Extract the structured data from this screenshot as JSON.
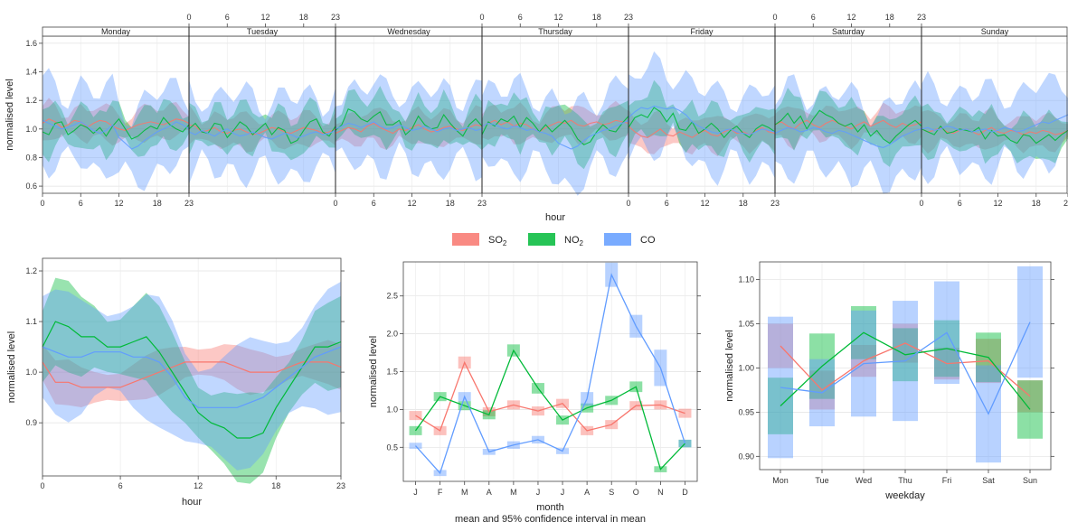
{
  "colors": {
    "so2": "#F8766D",
    "no2": "#00BA38",
    "co": "#619CFF"
  },
  "legend": {
    "items": [
      {
        "key": "so2",
        "base": "SO",
        "sub": "2"
      },
      {
        "key": "no2",
        "base": "NO",
        "sub": "2"
      },
      {
        "key": "co",
        "base": "CO",
        "sub": ""
      }
    ]
  },
  "chart_data": [
    {
      "id": "weekly",
      "type": "line",
      "xlabel": "hour",
      "ylabel": "normalised level",
      "ylim": [
        0.55,
        1.65
      ],
      "yticks": [
        0.6,
        0.8,
        1.0,
        1.2,
        1.4,
        1.6
      ],
      "panels": [
        "Monday",
        "Tuesday",
        "Wednesday",
        "Thursday",
        "Friday",
        "Saturday",
        "Sunday"
      ],
      "hour_ticks": [
        0,
        6,
        12,
        18,
        23
      ],
      "interval": "95% confidence interval (shaded band)",
      "series": [
        {
          "key": "so2",
          "values": [
            [
              1.04,
              1.07,
              1.05,
              1.01,
              1.03,
              1.06,
              1.05,
              1.01,
              1.04,
              1.06,
              1.05,
              1.02,
              1.0,
              0.99,
              1.01,
              1.03,
              1.04,
              1.05,
              1.04,
              1.03,
              1.05,
              1.07,
              1.06,
              1.04
            ],
            [
              1.03,
              1.02,
              0.98,
              0.99,
              1.01,
              0.98,
              0.97,
              0.99,
              1.0,
              0.98,
              0.96,
              0.97,
              0.99,
              1.01,
              1.0,
              0.98,
              0.97,
              0.99,
              1.01,
              1.0,
              0.99,
              0.97,
              0.98,
              1.0
            ],
            [
              0.97,
              0.99,
              1.01,
              1.0,
              0.98,
              1.02,
              1.04,
              1.01,
              0.99,
              0.97,
              1.0,
              0.99,
              1.01,
              1.03,
              1.0,
              0.98,
              0.99,
              1.01,
              1.02,
              1.0,
              0.99,
              1.01,
              1.03,
              1.02
            ],
            [
              1.02,
              1.04,
              1.06,
              1.03,
              1.05,
              1.02,
              1.04,
              1.03,
              1.0,
              0.98,
              1.01,
              1.03,
              1.05,
              1.04,
              1.06,
              1.03,
              1.02,
              1.04,
              1.05,
              1.03,
              1.04,
              1.06,
              1.05,
              1.04
            ],
            [
              1.02,
              0.98,
              0.95,
              0.94,
              0.97,
              1.0,
              0.96,
              0.95,
              0.98,
              0.96,
              0.94,
              0.97,
              0.99,
              0.96,
              0.95,
              0.98,
              1.0,
              0.97,
              0.98,
              0.96,
              0.99,
              1.01,
              0.98,
              0.97
            ],
            [
              1.03,
              1.05,
              1.02,
              1.0,
              1.04,
              1.06,
              1.03,
              1.01,
              1.04,
              1.06,
              1.04,
              1.02,
              1.0,
              1.03,
              1.05,
              1.02,
              1.04,
              1.06,
              1.03,
              1.01,
              1.04,
              1.02,
              1.03,
              1.05
            ],
            [
              1.0,
              0.98,
              0.99,
              1.01,
              0.98,
              0.97,
              0.99,
              1.0,
              0.98,
              0.96,
              0.99,
              1.01,
              0.98,
              0.97,
              0.99,
              0.98,
              0.96,
              0.98,
              0.97,
              0.99,
              0.98,
              0.96,
              0.97,
              0.99
            ]
          ],
          "halfwidth": 0.1
        },
        {
          "key": "no2",
          "values": [
            [
              0.98,
              0.96,
              1.04,
              1.05,
              0.96,
              0.99,
              1.03,
              1.01,
              0.97,
              1.01,
              0.95,
              1.02,
              1.07,
              1.0,
              0.93,
              0.95,
              0.99,
              1.02,
              1.0,
              1.08,
              1.03,
              1.0,
              0.98,
              1.03
            ],
            [
              1.0,
              1.04,
              0.98,
              0.97,
              1.04,
              1.03,
              0.94,
              0.99,
              1.05,
              1.02,
              0.96,
              1.0,
              1.04,
              0.96,
              1.01,
              0.99,
              0.9,
              0.92,
              0.99,
              1.05,
              1.07,
              0.98,
              0.95,
              1.02
            ],
            [
              0.99,
              1.03,
              1.14,
              1.12,
              1.07,
              1.05,
              1.09,
              1.12,
              1.03,
              1.03,
              1.06,
              0.96,
              1.0,
              1.09,
              1.03,
              1.0,
              1.01,
              1.1,
              1.04,
              0.99,
              0.95,
              1.03,
              1.07,
              1.02
            ],
            [
              0.96,
              1.05,
              1.02,
              1.07,
              1.05,
              1.09,
              1.01,
              1.08,
              1.04,
              0.98,
              1.03,
              0.98,
              1.02,
              1.06,
              1.01,
              0.93,
              0.89,
              0.91,
              0.98,
              1.03,
              0.99,
              0.98,
              1.04,
              1.09
            ],
            [
              1.01,
              1.08,
              1.1,
              1.08,
              1.15,
              1.12,
              1.05,
              1.11,
              1.0,
              0.99,
              1.05,
              0.97,
              1.0,
              1.04,
              1.0,
              0.94,
              0.99,
              1.02,
              0.97,
              0.94,
              1.0,
              1.03,
              1.01,
              0.98
            ],
            [
              1.03,
              1.06,
              1.11,
              1.04,
              1.09,
              1.0,
              1.07,
              1.13,
              1.1,
              1.08,
              1.04,
              1.02,
              1.04,
              0.98,
              1.03,
              0.95,
              0.99,
              0.93,
              0.9,
              0.95,
              0.99,
              1.03,
              1.06,
              1.02
            ],
            [
              1.0,
              0.98,
              0.96,
              1.02,
              0.97,
              0.98,
              1.0,
              0.99,
              0.98,
              1.01,
              0.93,
              0.99,
              0.95,
              0.96,
              0.92,
              0.9,
              0.96,
              0.95,
              0.9,
              0.93,
              0.96,
              0.92,
              0.96,
              0.99
            ]
          ],
          "halfwidth": 0.13
        },
        {
          "key": "co",
          "values": [
            [
              1.06,
              1.04,
              1.02,
              1.0,
              1.01,
              1.03,
              1.05,
              1.02,
              0.99,
              0.97,
              0.99,
              1.03,
              0.94,
              0.9,
              0.86,
              0.88,
              0.92,
              0.95,
              0.98,
              1.0,
              1.02,
              1.05,
              1.03,
              1.0
            ],
            [
              0.98,
              0.96,
              0.99,
              0.97,
              0.95,
              0.98,
              1.0,
              0.97,
              0.95,
              0.96,
              0.98,
              0.96,
              0.94,
              0.93,
              0.95,
              0.97,
              0.96,
              0.94,
              0.95,
              0.97,
              0.98,
              0.96,
              0.97,
              0.99
            ],
            [
              1.0,
              1.02,
              1.04,
              1.03,
              1.01,
              1.03,
              1.05,
              1.02,
              1.0,
              1.01,
              1.03,
              1.01,
              0.99,
              1.0,
              1.02,
              1.0,
              0.98,
              1.0,
              1.01,
              0.99,
              1.0,
              1.01,
              0.99,
              1.0
            ],
            [
              1.02,
              1.04,
              1.03,
              1.01,
              1.0,
              1.02,
              1.01,
              0.99,
              1.0,
              0.98,
              0.97,
              0.95,
              0.9,
              0.88,
              0.86,
              0.88,
              0.92,
              0.95,
              0.97,
              0.99,
              1.0,
              1.02,
              1.04,
              1.06
            ],
            [
              1.08,
              1.12,
              1.15,
              1.14,
              1.16,
              1.15,
              1.14,
              1.15,
              1.13,
              1.1,
              1.05,
              1.02,
              1.0,
              0.98,
              0.97,
              0.99,
              1.0,
              0.98,
              0.97,
              0.96,
              0.98,
              1.0,
              0.99,
              0.98
            ],
            [
              0.97,
              0.99,
              1.01,
              1.0,
              0.98,
              0.99,
              1.01,
              1.0,
              0.98,
              0.97,
              0.99,
              0.98,
              0.96,
              0.94,
              0.92,
              0.9,
              0.88,
              0.87,
              0.89,
              0.92,
              0.95,
              0.97,
              0.99,
              1.0
            ],
            [
              1.0,
              1.01,
              0.99,
              1.0,
              1.02,
              1.01,
              0.99,
              1.0,
              0.98,
              0.99,
              1.0,
              0.98,
              0.99,
              1.01,
              1.0,
              0.98,
              0.99,
              1.01,
              1.03,
              1.05,
              1.04,
              1.06,
              1.08,
              1.1
            ]
          ],
          "halfwidth": 0.26
        }
      ]
    },
    {
      "id": "hour",
      "type": "line",
      "xlabel": "hour",
      "ylabel": "normalised level",
      "xlim": [
        0,
        23
      ],
      "xticks": [
        0,
        6,
        12,
        18,
        23
      ],
      "ylim": [
        0.795,
        1.225
      ],
      "yticks": [
        0.9,
        1.0,
        1.1,
        1.2
      ],
      "x": [
        0,
        1,
        2,
        3,
        4,
        5,
        6,
        7,
        8,
        9,
        10,
        11,
        12,
        13,
        14,
        15,
        16,
        17,
        18,
        19,
        20,
        21,
        22,
        23
      ],
      "interval": "95% confidence interval (shaded band)",
      "series": [
        {
          "key": "so2",
          "values": [
            1.02,
            0.98,
            0.98,
            0.97,
            0.97,
            0.97,
            0.97,
            0.98,
            0.99,
            1.0,
            1.01,
            1.02,
            1.02,
            1.02,
            1.02,
            1.01,
            1.0,
            1.0,
            1.0,
            1.01,
            1.02,
            1.02,
            1.02,
            1.01
          ],
          "halfwidth": 0.035
        },
        {
          "key": "no2",
          "values": [
            1.05,
            1.1,
            1.09,
            1.07,
            1.07,
            1.05,
            1.05,
            1.06,
            1.07,
            1.04,
            1.0,
            0.96,
            0.92,
            0.9,
            0.89,
            0.87,
            0.87,
            0.88,
            0.93,
            0.97,
            1.01,
            1.05,
            1.05,
            1.06
          ],
          "halfwidth": 0.07
        },
        {
          "key": "co",
          "values": [
            1.05,
            1.04,
            1.03,
            1.03,
            1.04,
            1.04,
            1.04,
            1.03,
            1.03,
            1.02,
            0.99,
            0.95,
            0.93,
            0.93,
            0.93,
            0.93,
            0.94,
            0.95,
            0.97,
            0.99,
            1.01,
            1.03,
            1.04,
            1.05
          ],
          "halfwidth": 0.1
        }
      ]
    },
    {
      "id": "month",
      "type": "line",
      "xlabel": "month",
      "ylabel": "normalised level",
      "caption": "mean and 95% confidence interval in mean",
      "categories": [
        "J",
        "F",
        "M",
        "A",
        "M",
        "J",
        "J",
        "A",
        "S",
        "O",
        "N",
        "D"
      ],
      "ylim": [
        0.05,
        2.95
      ],
      "yticks": [
        0.5,
        1.0,
        1.5,
        2.0,
        2.5
      ],
      "interval": "95% confidence interval (shaded box)",
      "series": [
        {
          "key": "so2",
          "values": [
            0.92,
            0.72,
            1.62,
            0.97,
            1.06,
            0.98,
            1.08,
            0.72,
            0.8,
            1.05,
            1.06,
            0.95
          ],
          "halfwidth": [
            0.06,
            0.06,
            0.08,
            0.06,
            0.06,
            0.06,
            0.06,
            0.06,
            0.06,
            0.06,
            0.06,
            0.06
          ]
        },
        {
          "key": "no2",
          "values": [
            0.72,
            1.17,
            1.05,
            0.93,
            1.78,
            1.28,
            0.86,
            1.02,
            1.12,
            1.3,
            0.21,
            0.55
          ],
          "halfwidth": [
            0.06,
            0.06,
            0.06,
            0.06,
            0.08,
            0.07,
            0.06,
            0.06,
            0.06,
            0.07,
            0.04,
            0.05
          ]
        },
        {
          "key": "co",
          "values": [
            0.52,
            0.16,
            1.17,
            0.44,
            0.53,
            0.6,
            0.45,
            1.14,
            2.78,
            2.1,
            1.55,
            0.55
          ],
          "halfwidth": [
            0.04,
            0.04,
            0.06,
            0.04,
            0.05,
            0.05,
            0.04,
            0.09,
            0.16,
            0.15,
            0.24,
            0.05
          ]
        }
      ]
    },
    {
      "id": "weekday",
      "type": "line",
      "xlabel": "weekday",
      "ylabel": "normalised level",
      "categories": [
        "Mon",
        "Tue",
        "Wed",
        "Thu",
        "Fri",
        "Sat",
        "Sun"
      ],
      "ylim": [
        0.885,
        1.12
      ],
      "yticks": [
        0.9,
        0.95,
        1.0,
        1.05,
        1.1
      ],
      "interval": "95% confidence interval (shaded box)",
      "series": [
        {
          "key": "so2",
          "values": [
            1.025,
            0.975,
            1.008,
            1.028,
            1.005,
            1.008,
            0.968
          ],
          "halfwidth": [
            0.025,
            0.022,
            0.018,
            0.022,
            0.018,
            0.025,
            0.018
          ]
        },
        {
          "key": "no2",
          "values": [
            0.957,
            1.002,
            1.04,
            1.015,
            1.022,
            1.012,
            0.953
          ],
          "halfwidth": [
            0.032,
            0.037,
            0.03,
            0.03,
            0.032,
            0.028,
            0.033
          ]
        },
        {
          "key": "co",
          "values": [
            0.978,
            0.972,
            1.005,
            1.008,
            1.04,
            0.948,
            1.052
          ],
          "halfwidth": [
            0.08,
            0.038,
            0.06,
            0.068,
            0.058,
            0.055,
            0.063
          ]
        }
      ]
    }
  ]
}
